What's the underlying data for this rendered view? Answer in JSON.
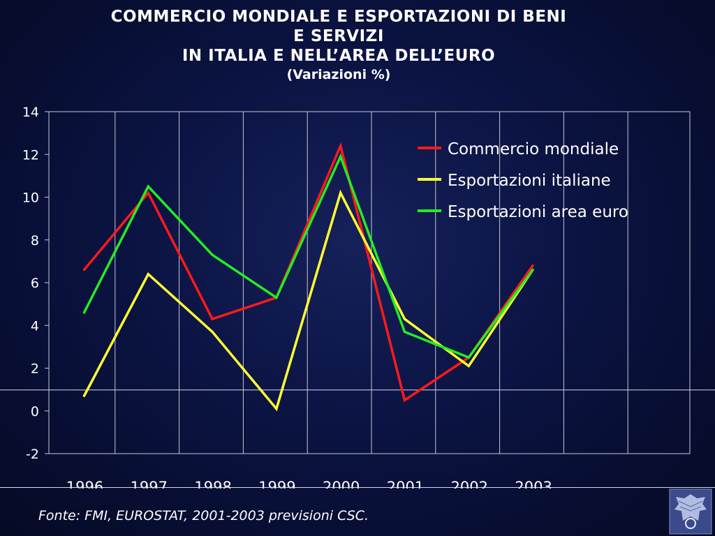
{
  "title": {
    "line1": "COMMERCIO MONDIALE E ESPORTAZIONI DI BENI",
    "line2": "E SERVIZI",
    "line3": "IN ITALIA E NELL’AREA DELL’EURO",
    "subtitle": "(Variazioni %)"
  },
  "source": "Fonte: FMI, EUROSTAT, 2001-2003 previsioni CSC.",
  "logo_icon": "eagle-emblem-icon",
  "colors": {
    "background": "#0b1342",
    "text": "#ffffff",
    "grid": "#c8c8d8"
  },
  "chart_data": {
    "type": "line",
    "categories": [
      "1996",
      "1997",
      "1998",
      "1999",
      "2000",
      "2001",
      "2002",
      "2003"
    ],
    "ylim": [
      -2,
      14
    ],
    "yticks": [
      -2,
      0,
      2,
      4,
      6,
      8,
      10,
      12,
      14
    ],
    "grid": true,
    "legend_position": "top-right",
    "series": [
      {
        "name": "Commercio mondiale",
        "color": "#ff1a1a",
        "values": [
          6.6,
          10.2,
          4.3,
          5.3,
          12.4,
          0.5,
          2.5,
          6.8
        ]
      },
      {
        "name": "Esportazioni italiane",
        "color": "#ffff33",
        "values": [
          0.7,
          6.4,
          3.7,
          0.1,
          10.2,
          4.3,
          2.1,
          6.6
        ]
      },
      {
        "name": "Esportazioni area euro",
        "color": "#22ee22",
        "values": [
          4.6,
          10.5,
          7.3,
          5.3,
          11.9,
          3.7,
          2.5,
          6.6
        ]
      }
    ]
  }
}
